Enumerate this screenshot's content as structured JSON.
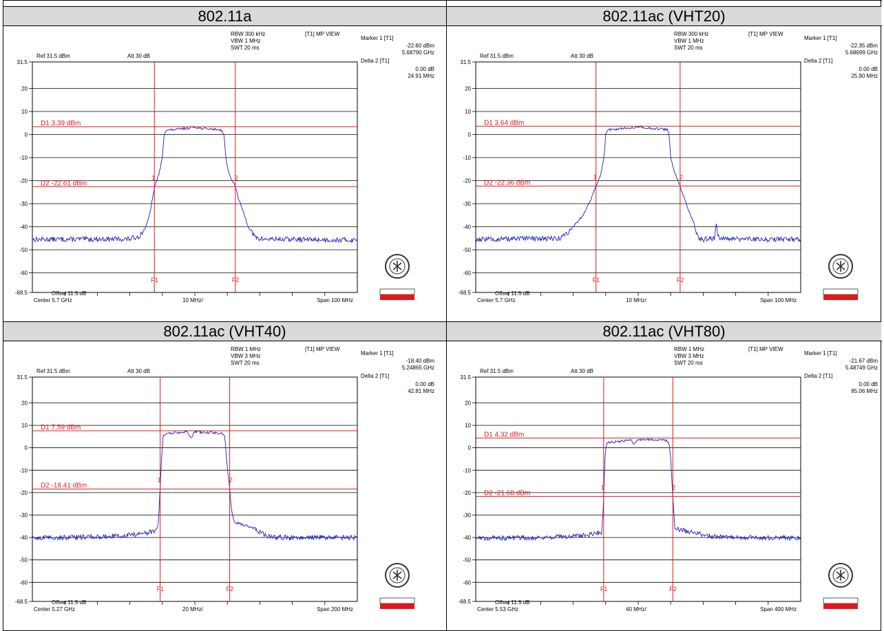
{
  "top_strip_text": "",
  "chart_data": [
    {
      "type": "line",
      "title": "802.11a",
      "settings": {
        "rbw": "RBW 300 kHz",
        "vbw": "VBW 1 MHz",
        "swt": "SWT 20 ms",
        "view": "[T1] MP VIEW",
        "ref": "Ref 31.5 dBm",
        "att": "Att 30 dB",
        "offset": "Offset 11.5 dB"
      },
      "marker": {
        "m1_label": "Marker 1 [T1]",
        "m1_level": "-22.60 dBm",
        "m1_freq": "5.68790 GHz",
        "d2_label": "Delta 2 [T1]",
        "d2_level": "0.00 dB",
        "d2_freq": "24.91 MHz"
      },
      "display_lines": {
        "d1_label": "D1 3.39 dBm",
        "d1_value": 3.39,
        "d2_label": "D2 -22.61 dBm",
        "d2_value": -22.61
      },
      "x_labels": {
        "center": "Center 5.7 GHz",
        "div": "10 MHz/",
        "span": "Span 100 MHz"
      },
      "yticks": [
        "31.5",
        "20",
        "10",
        "0",
        "-10",
        "-20",
        "-30",
        "-40",
        "-50",
        "-60",
        "-68.5"
      ],
      "ylim": [
        -68.5,
        31.5
      ],
      "xlim": [
        -50,
        50
      ],
      "x_unit": "MHz offset from center",
      "freq_lines": {
        "f1_label": "F1",
        "f1": -12.45,
        "f2_label": "F2",
        "f2": 12.45
      },
      "marker_labels": {
        "m1": "1",
        "m2": "2"
      },
      "trace": {
        "noise_level": -45.5,
        "points": [
          [
            -50,
            -45.5
          ],
          [
            -20,
            -45.3
          ],
          [
            -17,
            -44
          ],
          [
            -15,
            -40
          ],
          [
            -14,
            -35
          ],
          [
            -13,
            -28
          ],
          [
            -12.4,
            -22.6
          ],
          [
            -11,
            -17
          ],
          [
            -10,
            -10
          ],
          [
            -9.5,
            0
          ],
          [
            -9,
            1.8
          ],
          [
            -5,
            2.3
          ],
          [
            -2,
            2.8
          ],
          [
            0,
            3.3
          ],
          [
            2,
            2.6
          ],
          [
            5,
            2.4
          ],
          [
            8,
            2.1
          ],
          [
            9,
            0
          ],
          [
            9.5,
            -10
          ],
          [
            10.5,
            -17
          ],
          [
            12.4,
            -22.6
          ],
          [
            13.5,
            -28
          ],
          [
            15,
            -34
          ],
          [
            16.5,
            -40
          ],
          [
            18.5,
            -44.5
          ],
          [
            20,
            -45.3
          ],
          [
            50,
            -45.8
          ]
        ]
      }
    },
    {
      "type": "line",
      "title": "802.11ac (VHT20)",
      "settings": {
        "rbw": "RBW 300 kHz",
        "vbw": "VBW 1 MHz",
        "swt": "SWT 20 ms",
        "view": "[T1] MP VIEW",
        "ref": "Ref 31.5 dBm",
        "att": "Att 30 dB",
        "offset": "Offset 11.5 dB"
      },
      "marker": {
        "m1_label": "Marker 1 [T1]",
        "m1_level": "-22.35 dBm",
        "m1_freq": "5.68699 GHz",
        "d2_label": "Delta 2 [T1]",
        "d2_level": "0.00 dB",
        "d2_freq": "25.90 MHz"
      },
      "display_lines": {
        "d1_label": "D1 3.64 dBm",
        "d1_value": 3.64,
        "d2_label": "D2 -22.36 dBm",
        "d2_value": -22.36
      },
      "x_labels": {
        "center": "Center 5.7 GHz",
        "div": "10 MHz/",
        "span": "Span 100 MHz"
      },
      "yticks": [
        "31.5",
        "20",
        "10",
        "0",
        "-10",
        "-20",
        "-30",
        "-40",
        "-50",
        "-60",
        "-68.5"
      ],
      "ylim": [
        -68.5,
        31.5
      ],
      "xlim": [
        -50,
        50
      ],
      "x_unit": "MHz offset from center",
      "freq_lines": {
        "f1_label": "F1",
        "f1": -13.0,
        "f2_label": "F2",
        "f2": 12.9
      },
      "marker_labels": {
        "m1": "1",
        "m2": "2"
      },
      "trace": {
        "noise_level": -45.5,
        "points": [
          [
            -50,
            -45.5
          ],
          [
            -24,
            -45
          ],
          [
            -22,
            -43
          ],
          [
            -20,
            -40
          ],
          [
            -17,
            -35
          ],
          [
            -14.5,
            -28
          ],
          [
            -13,
            -22.4
          ],
          [
            -11.5,
            -17
          ],
          [
            -10.5,
            -10
          ],
          [
            -10,
            0
          ],
          [
            -9.5,
            2
          ],
          [
            -5,
            2.6
          ],
          [
            -2,
            3.0
          ],
          [
            0,
            3.5
          ],
          [
            3,
            2.8
          ],
          [
            7,
            2.4
          ],
          [
            9,
            2.0
          ],
          [
            9.5,
            0
          ],
          [
            10,
            -10
          ],
          [
            11,
            -16
          ],
          [
            12.9,
            -22.4
          ],
          [
            14,
            -27
          ],
          [
            15.5,
            -33
          ],
          [
            17,
            -38
          ],
          [
            18,
            -43
          ],
          [
            19,
            -45.2
          ],
          [
            20,
            -45.4
          ],
          [
            23.5,
            -45
          ],
          [
            24,
            -38
          ],
          [
            24.5,
            -44.5
          ],
          [
            30,
            -45.3
          ],
          [
            50,
            -45.5
          ]
        ]
      }
    },
    {
      "type": "line",
      "title": "802.11ac (VHT40)",
      "settings": {
        "rbw": "RBW 1 MHz",
        "vbw": "VBW 3 MHz",
        "swt": "SWT 20 ms",
        "view": "[T1] MP VIEW",
        "ref": "Ref 31.5 dBm",
        "att": "Att 30 dB",
        "offset": "Offset 11.5 dB"
      },
      "marker": {
        "m1_label": "Marker 1 [T1]",
        "m1_level": "-18.40 dBm",
        "m1_freq": "5.24865 GHz",
        "d2_label": "Delta 2 [T1]",
        "d2_level": "0.00 dB",
        "d2_freq": "42.81 MHz"
      },
      "display_lines": {
        "d1_label": "D1 7.59 dBm",
        "d1_value": 7.59,
        "d2_label": "D2 -18.41 dBm",
        "d2_value": -18.41
      },
      "x_labels": {
        "center": "Center 5.27 GHz",
        "div": "20 MHz/",
        "span": "Span 200 MHz"
      },
      "yticks": [
        "31.5",
        "20",
        "10",
        "0",
        "-10",
        "-20",
        "-30",
        "-40",
        "-50",
        "-60",
        "-68.5"
      ],
      "ylim": [
        -68.5,
        31.5
      ],
      "xlim": [
        -100,
        100
      ],
      "x_unit": "MHz offset from center",
      "freq_lines": {
        "f1_label": "F1",
        "f1": -21.35,
        "f2_label": "F2",
        "f2": 21.45
      },
      "marker_labels": {
        "m1": "1",
        "m2": "2"
      },
      "trace": {
        "noise_level": -40.0,
        "points": [
          [
            -100,
            -40.2
          ],
          [
            -60,
            -39.8
          ],
          [
            -40,
            -39
          ],
          [
            -30,
            -38
          ],
          [
            -24,
            -37
          ],
          [
            -22.5,
            -34
          ],
          [
            -21.4,
            -18.4
          ],
          [
            -20.5,
            -5
          ],
          [
            -19.5,
            5
          ],
          [
            -18,
            6.2
          ],
          [
            -10,
            6.8
          ],
          [
            -5,
            7.3
          ],
          [
            -3,
            5
          ],
          [
            -2,
            4.5
          ],
          [
            0,
            7.2
          ],
          [
            5,
            6.8
          ],
          [
            10,
            6.7
          ],
          [
            17,
            6.4
          ],
          [
            18.5,
            5
          ],
          [
            19.5,
            -5
          ],
          [
            21.4,
            -18.4
          ],
          [
            22.5,
            -27
          ],
          [
            24,
            -33
          ],
          [
            30,
            -34.5
          ],
          [
            35,
            -35.5
          ],
          [
            40,
            -37.5
          ],
          [
            45,
            -39.5
          ],
          [
            50,
            -40
          ],
          [
            100,
            -40
          ]
        ]
      }
    },
    {
      "type": "line",
      "title": "802.11ac (VHT80)",
      "settings": {
        "rbw": "RBW 1 MHz",
        "vbw": "VBW 3 MHz",
        "swt": "SWT 20 ms",
        "view": "[T1] MP VIEW",
        "ref": "Ref 31.5 dBm",
        "att": "Att 30 dB",
        "offset": "Offset 11.5 dB"
      },
      "marker": {
        "m1_label": "Marker 1 [T1]",
        "m1_level": "-21.67 dBm",
        "m1_freq": "5.48749 GHz",
        "d2_label": "Delta 2 [T1]",
        "d2_level": "0.00 dB",
        "d2_freq": "85.06 MHz"
      },
      "display_lines": {
        "d1_label": "D1 4.32 dBm",
        "d1_value": 4.32,
        "d2_label": "D2 -21.68 dBm",
        "d2_value": -21.68
      },
      "x_labels": {
        "center": "Center 5.53 GHz",
        "div": "40 MHz/",
        "span": "Span 400 MHz"
      },
      "yticks": [
        "31.5",
        "20",
        "10",
        "0",
        "-10",
        "-20",
        "-30",
        "-40",
        "-50",
        "-60",
        "-68.5"
      ],
      "ylim": [
        -68.5,
        31.5
      ],
      "xlim": [
        -200,
        200
      ],
      "x_unit": "MHz offset from center",
      "freq_lines": {
        "f1_label": "F1",
        "f1": -42.5,
        "f2_label": "F2",
        "f2": 42.6
      },
      "marker_labels": {
        "m1": "1",
        "m2": "2"
      },
      "trace": {
        "noise_level": -40.0,
        "points": [
          [
            -200,
            -40.3
          ],
          [
            -120,
            -40
          ],
          [
            -80,
            -39.5
          ],
          [
            -55,
            -38.5
          ],
          [
            -45,
            -37.5
          ],
          [
            -43.5,
            -30
          ],
          [
            -42.5,
            -21.7
          ],
          [
            -41,
            -5
          ],
          [
            -39,
            1.8
          ],
          [
            -35,
            2.4
          ],
          [
            -20,
            3.0
          ],
          [
            -10,
            3.6
          ],
          [
            -5,
            1.5
          ],
          [
            0,
            3.5
          ],
          [
            10,
            3.8
          ],
          [
            20,
            3.5
          ],
          [
            35,
            3.3
          ],
          [
            38,
            1.8
          ],
          [
            40,
            -5
          ],
          [
            42.6,
            -21.7
          ],
          [
            44,
            -30
          ],
          [
            45,
            -36
          ],
          [
            50,
            -36.5
          ],
          [
            70,
            -38
          ],
          [
            90,
            -39.6
          ],
          [
            120,
            -40
          ],
          [
            200,
            -40.2
          ]
        ]
      }
    }
  ]
}
